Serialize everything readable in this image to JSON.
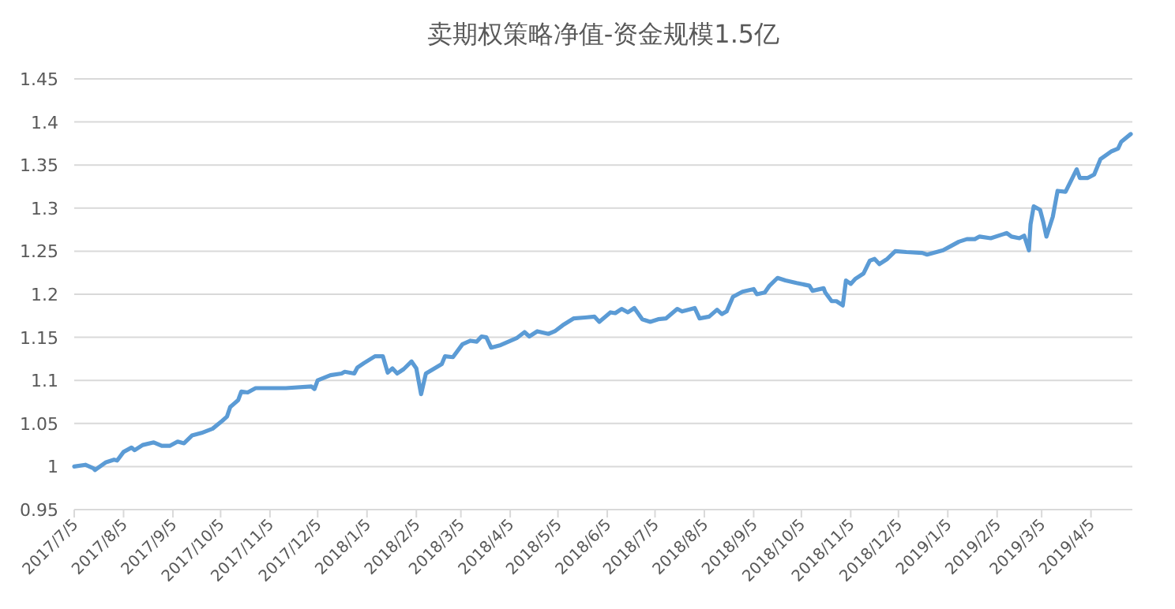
{
  "chart_data": {
    "type": "line",
    "title": "卖期权策略净值-资金规模1.5亿",
    "x": [
      "2017-07-05",
      "2017-07-12",
      "2017-07-17",
      "2017-07-18",
      "2017-07-25",
      "2017-07-30",
      "2017-08-01",
      "2017-08-05",
      "2017-08-10",
      "2017-08-12",
      "2017-08-17",
      "2017-08-24",
      "2017-08-29",
      "2017-09-03",
      "2017-09-08",
      "2017-09-12",
      "2017-09-17",
      "2017-09-23",
      "2017-09-30",
      "2017-10-06",
      "2017-10-09",
      "2017-10-11",
      "2017-10-16",
      "2017-10-18",
      "2017-10-22",
      "2017-10-27",
      "2017-11-15",
      "2017-12-01",
      "2017-12-03",
      "2017-12-05",
      "2017-12-13",
      "2017-12-20",
      "2017-12-22",
      "2017-12-28",
      "2017-12-30",
      "2018-01-03",
      "2018-01-10",
      "2018-01-15",
      "2018-01-18",
      "2018-01-21",
      "2018-01-24",
      "2018-01-28",
      "2018-02-02",
      "2018-02-05",
      "2018-02-08",
      "2018-02-11",
      "2018-02-21",
      "2018-02-23",
      "2018-02-28",
      "2018-03-06",
      "2018-03-11",
      "2018-03-15",
      "2018-03-18",
      "2018-03-21",
      "2018-03-24",
      "2018-03-30",
      "2018-04-09",
      "2018-04-14",
      "2018-04-17",
      "2018-04-22",
      "2018-04-29",
      "2018-05-03",
      "2018-05-08",
      "2018-05-15",
      "2018-05-22",
      "2018-05-28",
      "2018-05-31",
      "2018-06-07",
      "2018-06-10",
      "2018-06-14",
      "2018-06-18",
      "2018-06-22",
      "2018-06-27",
      "2018-07-02",
      "2018-07-07",
      "2018-07-12",
      "2018-07-19",
      "2018-07-22",
      "2018-07-30",
      "2018-08-02",
      "2018-08-08",
      "2018-08-13",
      "2018-08-16",
      "2018-08-19",
      "2018-08-23",
      "2018-08-29",
      "2018-09-05",
      "2018-09-07",
      "2018-09-12",
      "2018-09-15",
      "2018-09-20",
      "2018-09-25",
      "2018-10-02",
      "2018-10-10",
      "2018-10-12",
      "2018-10-19",
      "2018-10-20",
      "2018-10-24",
      "2018-10-27",
      "2018-10-31",
      "2018-11-02",
      "2018-11-05",
      "2018-11-08",
      "2018-11-13",
      "2018-11-17",
      "2018-11-20",
      "2018-11-23",
      "2018-11-28",
      "2018-12-03",
      "2018-12-10",
      "2018-12-20",
      "2018-12-23",
      "2019-01-02",
      "2019-01-07",
      "2019-01-12",
      "2019-01-17",
      "2019-01-22",
      "2019-01-25",
      "2019-02-01",
      "2019-02-11",
      "2019-02-14",
      "2019-02-19",
      "2019-02-22",
      "2019-02-25",
      "2019-02-26",
      "2019-02-28",
      "2019-03-04",
      "2019-03-06",
      "2019-03-08",
      "2019-03-12",
      "2019-03-15",
      "2019-03-20",
      "2019-03-27",
      "2019-03-29",
      "2019-04-03",
      "2019-04-07",
      "2019-04-11",
      "2019-04-18",
      "2019-04-22",
      "2019-04-24",
      "2019-04-30"
    ],
    "series": [
      {
        "color": "#5b9bd5",
        "values": [
          1.0,
          1.002,
          0.998,
          0.996,
          1.005,
          1.008,
          1.007,
          1.017,
          1.022,
          1.019,
          1.025,
          1.028,
          1.024,
          1.024,
          1.029,
          1.027,
          1.036,
          1.039,
          1.044,
          1.053,
          1.058,
          1.069,
          1.077,
          1.087,
          1.086,
          1.091,
          1.091,
          1.093,
          1.09,
          1.1,
          1.106,
          1.108,
          1.11,
          1.108,
          1.115,
          1.12,
          1.128,
          1.128,
          1.109,
          1.114,
          1.108,
          1.113,
          1.122,
          1.114,
          1.084,
          1.108,
          1.119,
          1.128,
          1.127,
          1.142,
          1.146,
          1.145,
          1.151,
          1.15,
          1.138,
          1.141,
          1.149,
          1.156,
          1.151,
          1.157,
          1.154,
          1.157,
          1.164,
          1.172,
          1.173,
          1.174,
          1.168,
          1.179,
          1.178,
          1.183,
          1.179,
          1.184,
          1.171,
          1.168,
          1.171,
          1.172,
          1.183,
          1.18,
          1.184,
          1.172,
          1.174,
          1.182,
          1.177,
          1.18,
          1.197,
          1.203,
          1.206,
          1.2,
          1.202,
          1.21,
          1.219,
          1.216,
          1.213,
          1.21,
          1.204,
          1.207,
          1.202,
          1.192,
          1.192,
          1.187,
          1.216,
          1.212,
          1.218,
          1.224,
          1.239,
          1.241,
          1.235,
          1.241,
          1.25,
          1.249,
          1.248,
          1.246,
          1.251,
          1.256,
          1.261,
          1.264,
          1.264,
          1.267,
          1.265,
          1.271,
          1.267,
          1.265,
          1.268,
          1.251,
          1.281,
          1.302,
          1.298,
          1.284,
          1.267,
          1.29,
          1.32,
          1.319,
          1.345,
          1.335,
          1.335,
          1.339,
          1.357,
          1.366,
          1.369,
          1.377,
          1.386
        ]
      }
    ],
    "xlim": [
      "2017-07-05",
      "2019-05-01"
    ],
    "xticks": [
      {
        "value": "2017-07-05",
        "label": "2017/7/5"
      },
      {
        "value": "2017-08-05",
        "label": "2017/8/5"
      },
      {
        "value": "2017-09-05",
        "label": "2017/9/5"
      },
      {
        "value": "2017-10-05",
        "label": "2017/10/5"
      },
      {
        "value": "2017-11-05",
        "label": "2017/11/5"
      },
      {
        "value": "2017-12-05",
        "label": "2017/12/5"
      },
      {
        "value": "2018-01-05",
        "label": "2018/1/5"
      },
      {
        "value": "2018-02-05",
        "label": "2018/2/5"
      },
      {
        "value": "2018-03-05",
        "label": "2018/3/5"
      },
      {
        "value": "2018-04-05",
        "label": "2018/4/5"
      },
      {
        "value": "2018-05-05",
        "label": "2018/5/5"
      },
      {
        "value": "2018-06-05",
        "label": "2018/6/5"
      },
      {
        "value": "2018-07-05",
        "label": "2018/7/5"
      },
      {
        "value": "2018-08-05",
        "label": "2018/8/5"
      },
      {
        "value": "2018-09-05",
        "label": "2018/9/5"
      },
      {
        "value": "2018-10-05",
        "label": "2018/10/5"
      },
      {
        "value": "2018-11-05",
        "label": "2018/11/5"
      },
      {
        "value": "2018-12-05",
        "label": "2018/12/5"
      },
      {
        "value": "2019-01-05",
        "label": "2019/1/5"
      },
      {
        "value": "2019-02-05",
        "label": "2019/2/5"
      },
      {
        "value": "2019-03-05",
        "label": "2019/3/5"
      },
      {
        "value": "2019-04-05",
        "label": "2019/4/5"
      }
    ],
    "ylim": [
      0.95,
      1.45
    ],
    "yticks": [
      0.95,
      1,
      1.05,
      1.1,
      1.15,
      1.2,
      1.25,
      1.3,
      1.35,
      1.4,
      1.45
    ],
    "grid": "y"
  }
}
